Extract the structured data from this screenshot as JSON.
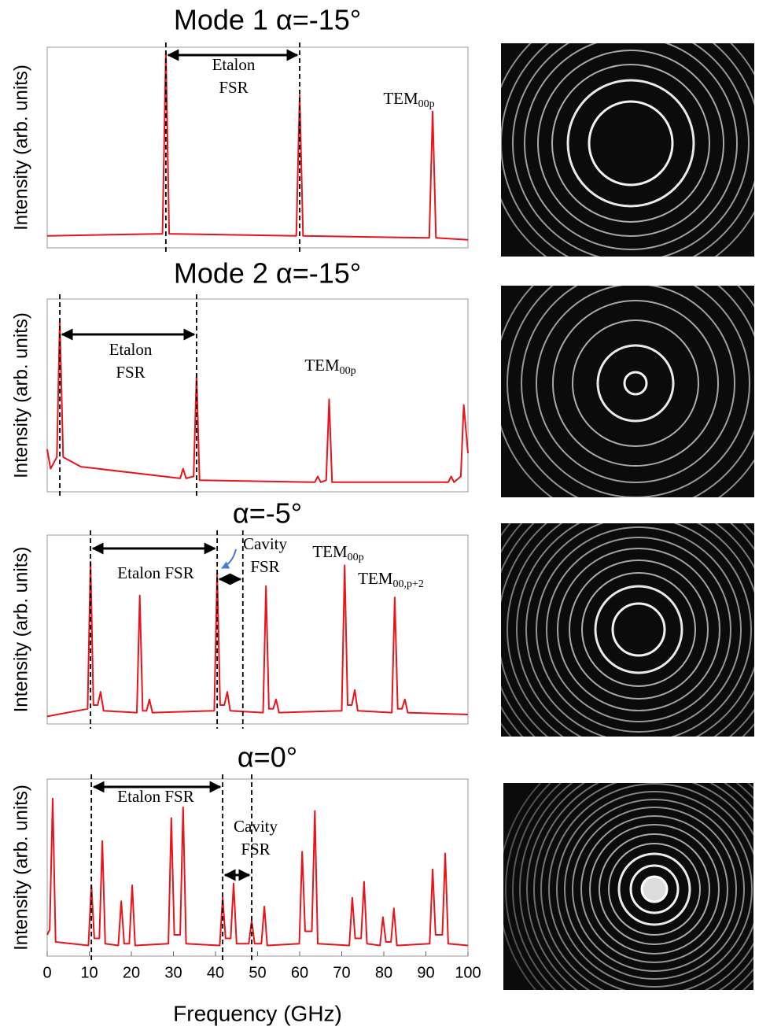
{
  "chart_data": [
    {
      "type": "line",
      "title": "Mode 1  α=-15°",
      "ylabel": "Intensity (arb. units)",
      "color": "#e8141c",
      "xlim": [
        0,
        100
      ],
      "ylim": [
        0,
        1
      ],
      "vlines": [
        28.2,
        60
      ],
      "annotations": [
        {
          "lines": [
            "Etalon",
            "FSR"
          ]
        },
        {
          "text": "TEM",
          "sub": "00p"
        }
      ],
      "x": [
        0,
        27.4,
        28.2,
        29.0,
        59.2,
        60,
        60.8,
        90.8,
        91.6,
        92.4,
        100
      ],
      "values": [
        0.06,
        0.07,
        0.98,
        0.07,
        0.06,
        0.76,
        0.06,
        0.05,
        0.68,
        0.05,
        0.04
      ]
    },
    {
      "type": "line",
      "title": "Mode 2  α=-15°",
      "ylabel": "Intensity (arb. units)",
      "color": "#e8141c",
      "xlim": [
        0,
        100
      ],
      "ylim": [
        0,
        1
      ],
      "vlines": [
        3,
        35.5
      ],
      "annotations": [
        {
          "lines": [
            "Etalon",
            "FSR"
          ]
        },
        {
          "text": "TEM",
          "sub": "00p"
        }
      ],
      "x": [
        0,
        0.8,
        2.3,
        3,
        3.8,
        8,
        31.6,
        32.3,
        33,
        34.8,
        35.5,
        36.2,
        63.6,
        64.3,
        65,
        66.3,
        67,
        67.7,
        95.3,
        96,
        96.7,
        98.3,
        99,
        100
      ],
      "values": [
        0.22,
        0.12,
        0.18,
        0.89,
        0.18,
        0.13,
        0.07,
        0.12,
        0.07,
        0.08,
        0.61,
        0.06,
        0.05,
        0.08,
        0.05,
        0.06,
        0.48,
        0.05,
        0.05,
        0.08,
        0.05,
        0.08,
        0.45,
        0.2
      ]
    },
    {
      "type": "line",
      "title": "α=-5°",
      "ylabel": "Intensity (arb. units)",
      "color": "#e8141c",
      "xlim": [
        0,
        100
      ],
      "ylim": [
        0,
        1
      ],
      "vlines": [
        10.3,
        40.4,
        46.5
      ],
      "annotations": [
        {
          "lines": [
            "Etalon FSR"
          ]
        },
        {
          "lines": [
            "Cavity",
            "FSR"
          ]
        },
        {
          "text": "TEM",
          "sub": "00p"
        },
        {
          "text": "TEM",
          "sub": "00,p+2"
        }
      ],
      "x": [
        0,
        9.6,
        10.3,
        11,
        12,
        12.7,
        13.4,
        21.3,
        22,
        22.7,
        23.6,
        24.3,
        25,
        39.7,
        40.4,
        41.1,
        42.1,
        42.8,
        43.5,
        51.3,
        52,
        52.7,
        53.7,
        54.4,
        55.1,
        70,
        70.7,
        71.4,
        72.4,
        73.1,
        73.8,
        81.9,
        82.6,
        83.3,
        84.3,
        85,
        85.7,
        100
      ],
      "values": [
        0.04,
        0.08,
        0.86,
        0.1,
        0.1,
        0.17,
        0.07,
        0.06,
        0.68,
        0.07,
        0.07,
        0.13,
        0.06,
        0.07,
        0.8,
        0.1,
        0.1,
        0.17,
        0.07,
        0.06,
        0.73,
        0.08,
        0.08,
        0.13,
        0.06,
        0.07,
        0.84,
        0.1,
        0.1,
        0.18,
        0.07,
        0.06,
        0.67,
        0.08,
        0.08,
        0.13,
        0.06,
        0.05
      ]
    },
    {
      "type": "line",
      "title": "α=0°",
      "ylabel": "Intensity (arb. units)",
      "xlabel": "Frequency (GHz)",
      "color": "#e8141c",
      "xlim": [
        0,
        100
      ],
      "ylim": [
        0,
        1
      ],
      "xticks": [
        0,
        10,
        20,
        30,
        40,
        50,
        60,
        70,
        80,
        90,
        100
      ],
      "vlines": [
        10.5,
        41.7,
        48.6
      ],
      "annotations": [
        {
          "lines": [
            "Etalon FSR"
          ]
        },
        {
          "lines": [
            "Cavity",
            "FSR"
          ]
        }
      ],
      "x": [
        0,
        0.6,
        1.3,
        2.0,
        9.8,
        10.5,
        11.2,
        12.4,
        13.1,
        13.8,
        16.9,
        17.6,
        18.3,
        19.5,
        20.2,
        20.9,
        28.8,
        29.5,
        30.2,
        31.6,
        32.3,
        33,
        41,
        41.7,
        42.4,
        43.6,
        44.3,
        45,
        47.9,
        48.6,
        49.3,
        50.9,
        51.6,
        52.3,
        59.9,
        60.6,
        61.3,
        62.9,
        63.6,
        64.3,
        71.8,
        72.5,
        73.2,
        74.6,
        75.3,
        76,
        79.1,
        79.8,
        80.5,
        81.7,
        82.4,
        83.1,
        90.9,
        91.6,
        92.3,
        93.9,
        94.6,
        95.3,
        100
      ],
      "values": [
        0.12,
        0.15,
        0.89,
        0.08,
        0.06,
        0.4,
        0.1,
        0.1,
        0.65,
        0.07,
        0.06,
        0.31,
        0.07,
        0.07,
        0.4,
        0.06,
        0.07,
        0.78,
        0.12,
        0.12,
        0.84,
        0.07,
        0.06,
        0.33,
        0.1,
        0.1,
        0.41,
        0.07,
        0.07,
        0.2,
        0.07,
        0.07,
        0.28,
        0.06,
        0.07,
        0.59,
        0.14,
        0.14,
        0.82,
        0.07,
        0.06,
        0.33,
        0.1,
        0.1,
        0.42,
        0.07,
        0.06,
        0.22,
        0.08,
        0.08,
        0.27,
        0.06,
        0.07,
        0.49,
        0.12,
        0.12,
        0.58,
        0.07,
        0.06
      ]
    }
  ]
}
